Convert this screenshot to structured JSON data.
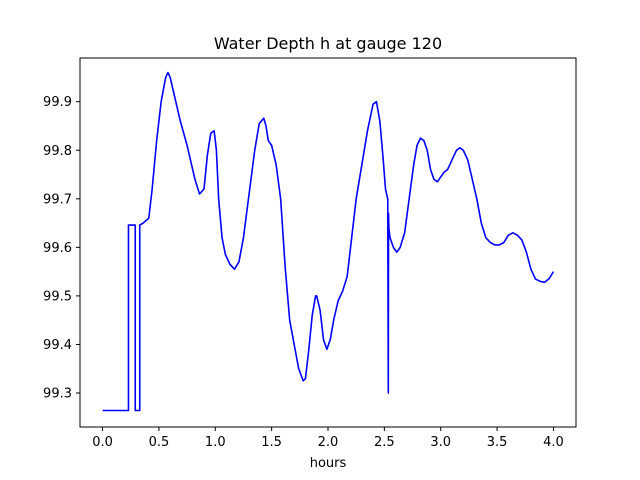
{
  "chart_data": {
    "type": "line",
    "title": "Water Depth h at gauge 120",
    "xlabel": "hours",
    "ylabel": "",
    "xlim": [
      -0.2,
      4.2
    ],
    "ylim": [
      99.23,
      99.99
    ],
    "xticks": [
      "0.0",
      "0.5",
      "1.0",
      "1.5",
      "2.0",
      "2.5",
      "3.0",
      "3.5",
      "4.0"
    ],
    "xtick_values": [
      0.0,
      0.5,
      1.0,
      1.5,
      2.0,
      2.5,
      3.0,
      3.5,
      4.0
    ],
    "yticks": [
      "99.3",
      "99.4",
      "99.5",
      "99.6",
      "99.7",
      "99.8",
      "99.9"
    ],
    "ytick_values": [
      99.3,
      99.4,
      99.5,
      99.6,
      99.7,
      99.8,
      99.9
    ],
    "grid": false,
    "series": [
      {
        "color": "#0000ff",
        "x": [
          0.0,
          0.22,
          0.23,
          0.23,
          0.29,
          0.29,
          0.33,
          0.33,
          0.36,
          0.41,
          0.44,
          0.48,
          0.52,
          0.56,
          0.58,
          0.6,
          0.64,
          0.69,
          0.75,
          0.82,
          0.86,
          0.9,
          0.93,
          0.96,
          0.99,
          1.01,
          1.03,
          1.06,
          1.09,
          1.13,
          1.17,
          1.21,
          1.25,
          1.3,
          1.35,
          1.39,
          1.43,
          1.45,
          1.47,
          1.5,
          1.54,
          1.58,
          1.62,
          1.66,
          1.7,
          1.74,
          1.78,
          1.8,
          1.83,
          1.86,
          1.89,
          1.9,
          1.93,
          1.96,
          1.99,
          2.02,
          2.05,
          2.09,
          2.13,
          2.17,
          2.2,
          2.25,
          2.3,
          2.35,
          2.4,
          2.43,
          2.46,
          2.49,
          2.51,
          2.53,
          2.535,
          2.537,
          2.54,
          2.55,
          2.58,
          2.61,
          2.64,
          2.68,
          2.72,
          2.76,
          2.79,
          2.82,
          2.85,
          2.88,
          2.91,
          2.94,
          2.97,
          3.0,
          3.03,
          3.06,
          3.1,
          3.14,
          3.17,
          3.2,
          3.24,
          3.28,
          3.32,
          3.36,
          3.4,
          3.44,
          3.48,
          3.52,
          3.56,
          3.6,
          3.64,
          3.68,
          3.72,
          3.76,
          3.8,
          3.84,
          3.88,
          3.92,
          3.96,
          4.0
        ],
        "y": [
          99.264,
          99.264,
          99.264,
          99.646,
          99.646,
          99.264,
          99.264,
          99.646,
          99.65,
          99.66,
          99.72,
          99.82,
          99.9,
          99.95,
          99.96,
          99.95,
          99.91,
          99.86,
          99.81,
          99.74,
          99.71,
          99.72,
          99.79,
          99.835,
          99.84,
          99.8,
          99.7,
          99.62,
          99.585,
          99.565,
          99.555,
          99.57,
          99.62,
          99.71,
          99.8,
          99.855,
          99.866,
          99.85,
          99.82,
          99.81,
          99.77,
          99.7,
          99.56,
          99.45,
          99.4,
          99.35,
          99.325,
          99.33,
          99.39,
          99.46,
          99.5,
          99.5,
          99.47,
          99.41,
          99.39,
          99.41,
          99.45,
          99.49,
          99.51,
          99.54,
          99.6,
          99.7,
          99.77,
          99.84,
          99.895,
          99.9,
          99.86,
          99.78,
          99.72,
          99.7,
          99.3,
          99.67,
          99.64,
          99.62,
          99.6,
          99.59,
          99.6,
          99.63,
          99.7,
          99.77,
          99.81,
          99.825,
          99.82,
          99.8,
          99.76,
          99.74,
          99.735,
          99.745,
          99.755,
          99.76,
          99.78,
          99.8,
          99.805,
          99.8,
          99.78,
          99.74,
          99.7,
          99.65,
          99.62,
          99.61,
          99.605,
          99.605,
          99.61,
          99.625,
          99.63,
          99.625,
          99.615,
          99.59,
          99.555,
          99.535,
          99.53,
          99.528,
          99.535,
          99.55
        ]
      }
    ]
  }
}
